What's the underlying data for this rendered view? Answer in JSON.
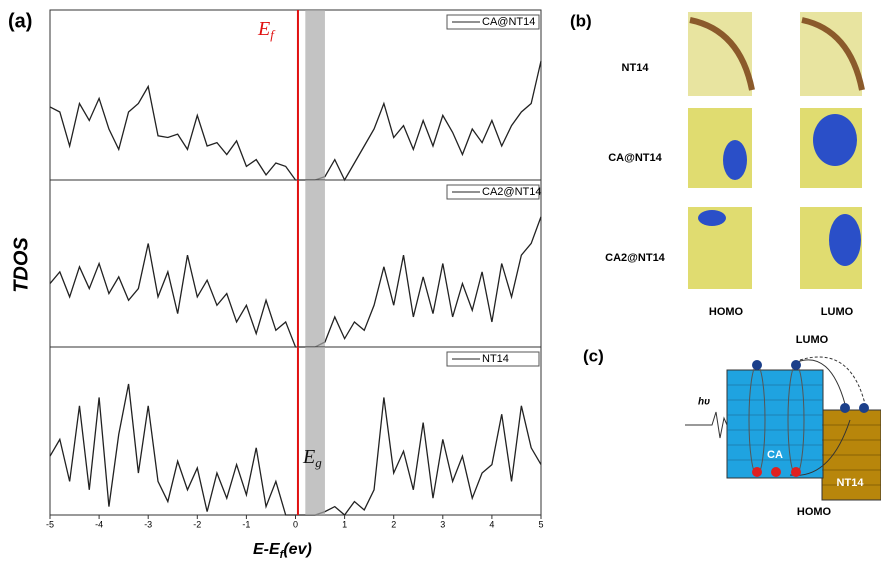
{
  "figure": {
    "panel_a": "(a)",
    "panel_b": "(b)",
    "panel_c": "(c)",
    "ylabel": "TDOS",
    "xlabel": {
      "text": "E-E",
      "sub": "f",
      "suffix": "(ev)"
    }
  },
  "chart_data": [
    {
      "type": "line",
      "xlim": [
        -5,
        5
      ],
      "ylim": [
        0,
        10
      ],
      "fermi": 0.05,
      "gap": [
        0.2,
        0.6
      ],
      "annotation": {
        "text": "E",
        "sub": "f"
      },
      "x": [
        -5,
        -4.8,
        -4.6,
        -4.4,
        -4.2,
        -4,
        -3.8,
        -3.6,
        -3.4,
        -3.2,
        -3,
        -2.8,
        -2.6,
        -2.4,
        -2.2,
        -2,
        -1.8,
        -1.6,
        -1.4,
        -1.2,
        -1,
        -0.8,
        -0.6,
        -0.4,
        -0.2,
        0,
        0.2,
        0.4,
        0.6,
        0.8,
        1,
        1.2,
        1.4,
        1.6,
        1.8,
        2,
        2.2,
        2.4,
        2.6,
        2.8,
        3,
        3.2,
        3.4,
        3.6,
        3.8,
        4,
        4.2,
        4.4,
        4.6,
        4.8,
        5
      ],
      "series": [
        {
          "name": "CA@NT14",
          "color": "#222222",
          "values": [
            4.3,
            4.0,
            2.0,
            4.5,
            3.5,
            4.8,
            3.0,
            1.8,
            4.0,
            4.5,
            5.5,
            2.6,
            2.5,
            2.7,
            1.8,
            3.8,
            2.0,
            2.2,
            1.5,
            2.3,
            0.8,
            1.2,
            0.3,
            1.0,
            0.8,
            0.0,
            0,
            0,
            0.2,
            1.2,
            0.0,
            1.0,
            2.0,
            3.0,
            4.5,
            2.5,
            3.2,
            1.8,
            3.5,
            2.0,
            3.8,
            2.8,
            1.5,
            3.0,
            2.2,
            3.5,
            2.0,
            3.2,
            4.0,
            4.5,
            7.0
          ]
        }
      ]
    },
    {
      "type": "line",
      "xlim": [
        -5,
        5
      ],
      "ylim": [
        0,
        10
      ],
      "fermi": 0.05,
      "gap": [
        0.2,
        0.6
      ],
      "x": [
        -5,
        -4.8,
        -4.6,
        -4.4,
        -4.2,
        -4,
        -3.8,
        -3.6,
        -3.4,
        -3.2,
        -3,
        -2.8,
        -2.6,
        -2.4,
        -2.2,
        -2,
        -1.8,
        -1.6,
        -1.4,
        -1.2,
        -1,
        -0.8,
        -0.6,
        -0.4,
        -0.2,
        0,
        0.2,
        0.4,
        0.6,
        0.8,
        1,
        1.2,
        1.4,
        1.6,
        1.8,
        2,
        2.2,
        2.4,
        2.6,
        2.8,
        3,
        3.2,
        3.4,
        3.6,
        3.8,
        4,
        4.2,
        4.4,
        4.6,
        4.8,
        5
      ],
      "series": [
        {
          "name": "CA2@NT14",
          "color": "#222222",
          "values": [
            3.8,
            4.5,
            3.0,
            4.8,
            3.5,
            5.0,
            3.2,
            4.2,
            2.8,
            3.5,
            6.2,
            3.0,
            4.5,
            2.0,
            5.5,
            3.0,
            4.0,
            2.5,
            3.2,
            1.5,
            2.5,
            0.8,
            2.8,
            1.0,
            1.5,
            0.0,
            0,
            0,
            0.3,
            1.8,
            0.5,
            1.5,
            1.0,
            2.5,
            4.8,
            2.5,
            5.5,
            1.8,
            4.2,
            2.0,
            5.0,
            1.8,
            3.8,
            2.2,
            4.5,
            1.5,
            5.0,
            3.0,
            5.5,
            6.2,
            7.8
          ]
        }
      ]
    },
    {
      "type": "line",
      "xlim": [
        -5,
        5
      ],
      "ylim": [
        0,
        10
      ],
      "fermi": 0.05,
      "gap": [
        0.2,
        0.6
      ],
      "annotation": {
        "text": "E",
        "sub": "g"
      },
      "xticks": [
        -5,
        -4,
        -3,
        -2,
        -1,
        0,
        1,
        2,
        3,
        4,
        5
      ],
      "x": [
        -5,
        -4.8,
        -4.6,
        -4.4,
        -4.2,
        -4,
        -3.8,
        -3.6,
        -3.4,
        -3.2,
        -3,
        -2.8,
        -2.6,
        -2.4,
        -2.2,
        -2,
        -1.8,
        -1.6,
        -1.4,
        -1.2,
        -1,
        -0.8,
        -0.6,
        -0.4,
        -0.2,
        0,
        0.2,
        0.4,
        0.6,
        0.8,
        1,
        1.2,
        1.4,
        1.6,
        1.8,
        2,
        2.2,
        2.4,
        2.6,
        2.8,
        3,
        3.2,
        3.4,
        3.6,
        3.8,
        4,
        4.2,
        4.4,
        4.6,
        4.8,
        5
      ],
      "series": [
        {
          "name": "NT14",
          "color": "#222222",
          "values": [
            3.5,
            4.5,
            2.0,
            6.5,
            1.5,
            7.0,
            0.5,
            4.8,
            7.8,
            2.5,
            6.5,
            2.0,
            0.8,
            3.2,
            1.5,
            2.8,
            0.2,
            2.5,
            1.0,
            3.0,
            1.2,
            4.0,
            0.5,
            2.0,
            0.0,
            0.0,
            0,
            0,
            0.2,
            0.5,
            0.0,
            0.8,
            0.3,
            1.5,
            7.0,
            2.5,
            3.8,
            1.5,
            5.5,
            1.0,
            4.5,
            2.0,
            3.5,
            1.0,
            2.5,
            3.0,
            6.0,
            2.0,
            6.5,
            4.0,
            3.0
          ]
        }
      ]
    }
  ],
  "panel_b": {
    "rows": [
      "NT14",
      "CA@NT14",
      "CA2@NT14"
    ],
    "columns": [
      "HOMO",
      "LUMO"
    ]
  },
  "panel_c": {
    "lumo": "LUMO",
    "homo": "HOMO",
    "light": "hυ",
    "donor": "CA",
    "acceptor": "NT14"
  }
}
